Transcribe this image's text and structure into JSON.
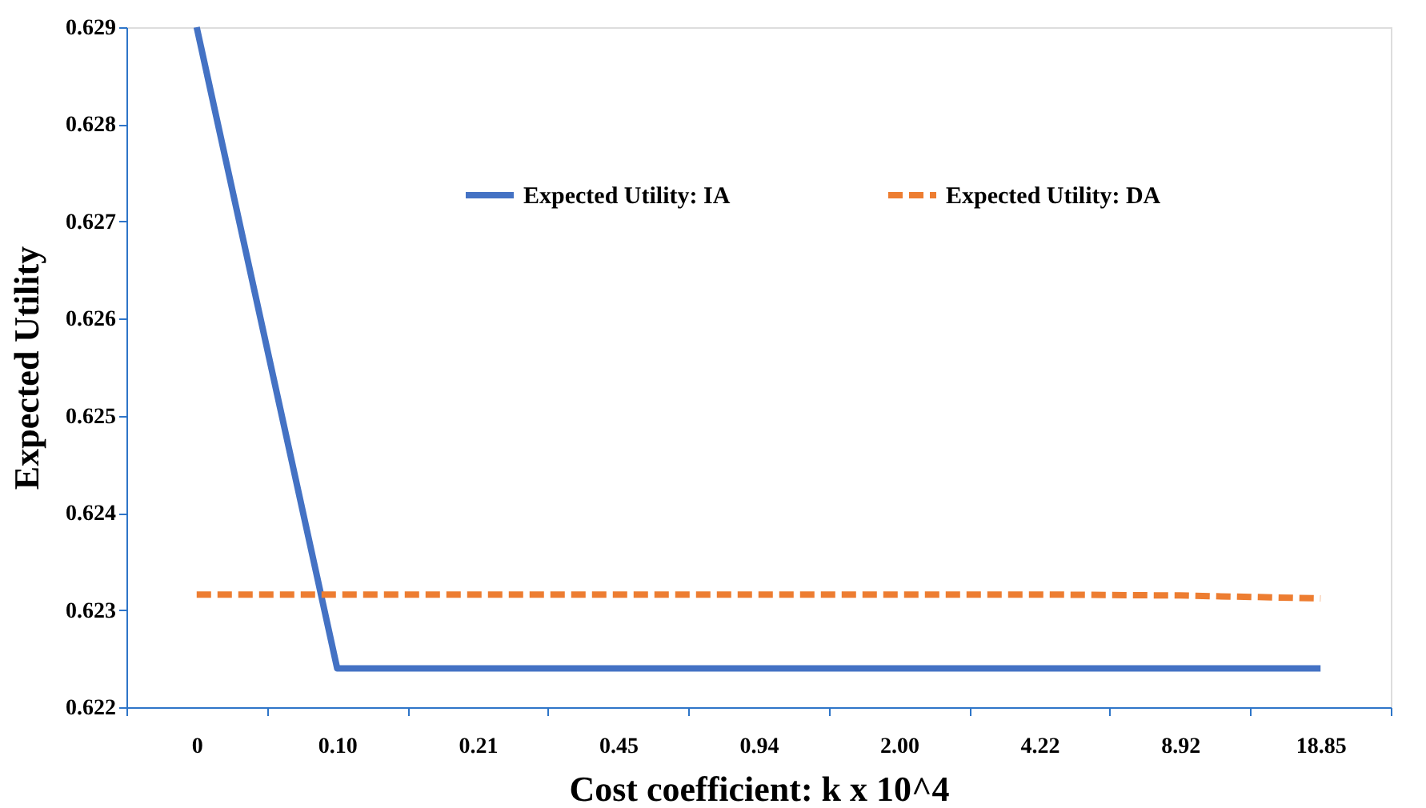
{
  "chart_data": {
    "type": "line",
    "xlabel": "Cost coefficient: k x 10^4",
    "ylabel": "Expected Utility",
    "categories": [
      "0",
      "0.10",
      "0.21",
      "0.45",
      "0.94",
      "2.00",
      "4.22",
      "8.92",
      "18.85"
    ],
    "series": [
      {
        "name": "Expected Utility: IA",
        "color": "#4472c4",
        "line_style": "solid",
        "values": [
          0.629,
          0.6224,
          0.6224,
          0.6224,
          0.6224,
          0.6224,
          0.6224,
          0.6224,
          0.6224
        ]
      },
      {
        "name": "Expected Utility: DA",
        "color": "#ed7d31",
        "line_style": "dashed",
        "values": [
          0.62316,
          0.62316,
          0.62316,
          0.62316,
          0.62316,
          0.62316,
          0.62316,
          0.62315,
          0.62312
        ]
      }
    ],
    "ylim": [
      0.622,
      0.629
    ],
    "yticks": [
      0.622,
      0.623,
      0.624,
      0.625,
      0.626,
      0.627,
      0.628,
      0.629
    ],
    "grid": false,
    "legend": "top",
    "marker": "none"
  }
}
